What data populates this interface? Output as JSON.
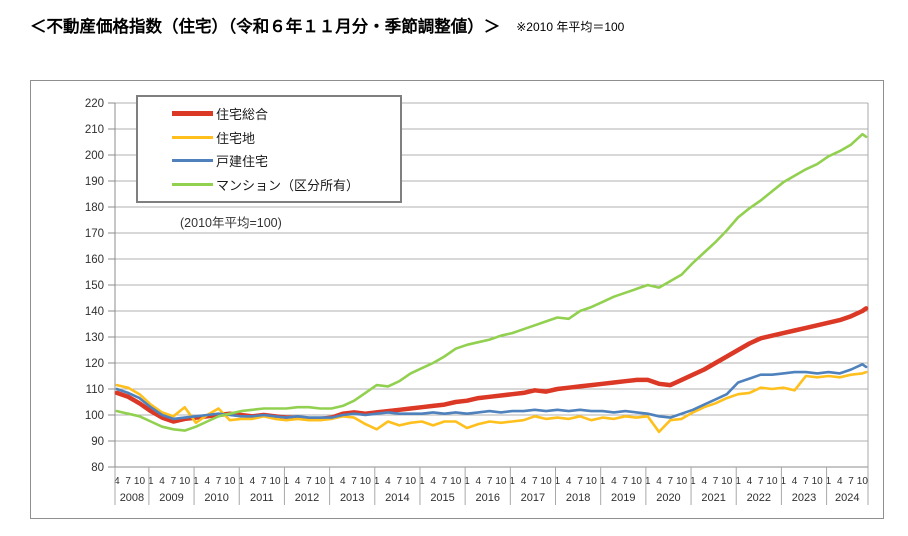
{
  "page": {
    "title": "＜不動産価格指数（住宅）（令和６年１１月分・季節調整値）＞",
    "note": "※2010 年平均＝100"
  },
  "chart_data": {
    "type": "line",
    "title": "不動産価格指数（住宅）",
    "annotation": "(2010年平均=100)",
    "grid": true,
    "legend_position": "top-left",
    "y_axis": {
      "min": 80,
      "max": 220,
      "step": 10,
      "ticks": [
        80,
        90,
        100,
        110,
        120,
        130,
        140,
        150,
        160,
        170,
        180,
        190,
        200,
        210,
        220
      ]
    },
    "x_axis": {
      "start": "2008-04",
      "end": "2024-11",
      "unit": "month",
      "tick_months": [
        1,
        4,
        7,
        10
      ],
      "years": [
        2008,
        2009,
        2010,
        2011,
        2012,
        2013,
        2014,
        2015,
        2016,
        2017,
        2018,
        2019,
        2020,
        2021,
        2022,
        2023,
        2024
      ]
    },
    "sampling": "values read at quarterly ticks (Jan/Apr/Jul/Oct) from 2008-04 through 2024-10, plus final point 2024-11",
    "series": [
      {
        "name": "住宅総合",
        "color": "#DB3826",
        "line_width": 4.5,
        "values": [
          108.5,
          107,
          104.5,
          101.5,
          99,
          97.5,
          98.5,
          99,
          99.5,
          100,
          100.5,
          100,
          99.5,
          100,
          99.5,
          99,
          99,
          98.5,
          98.5,
          99,
          100.5,
          101,
          100.5,
          101,
          101.5,
          102,
          102.5,
          103,
          103.5,
          104,
          105,
          105.5,
          106.5,
          107,
          107.5,
          108,
          108.5,
          109.5,
          109,
          110,
          110.5,
          111,
          111.5,
          112,
          112.5,
          113,
          113.5,
          113.5,
          112,
          111.5,
          113.5,
          115.5,
          117.5,
          120,
          122.5,
          125,
          127.5,
          129.5,
          130.5,
          131.5,
          132.5,
          133.5,
          134.5,
          135.5,
          136.5,
          138,
          140,
          141
        ]
      },
      {
        "name": "住宅地",
        "color": "#FFC01E",
        "line_width": 2.6,
        "values": [
          111.5,
          110.5,
          108,
          104,
          101,
          99.5,
          103,
          97,
          100,
          102.5,
          98,
          98.5,
          98.5,
          99.5,
          98.5,
          98,
          98.5,
          98,
          98,
          98.5,
          99.5,
          99,
          96.5,
          94.5,
          97.5,
          96,
          97,
          97.5,
          96,
          97.5,
          97.5,
          95,
          96.5,
          97.5,
          97,
          97.5,
          98,
          99.5,
          98.5,
          99,
          98.5,
          99.5,
          98,
          99,
          98.5,
          99.5,
          99,
          99.5,
          93.5,
          98,
          98.5,
          101,
          103,
          104.5,
          106.5,
          108,
          108.5,
          110.5,
          110,
          110.5,
          109.5,
          115,
          114.5,
          115,
          114.5,
          115.5,
          116,
          116.5
        ]
      },
      {
        "name": "戸建住宅",
        "color": "#4F81BD",
        "line_width": 2.6,
        "values": [
          110,
          108.5,
          106.5,
          103,
          100,
          98.5,
          99,
          99.5,
          100,
          100.5,
          100,
          99.5,
          99.5,
          100,
          99.5,
          99,
          99.5,
          99,
          99,
          99,
          100,
          100.5,
          100,
          100.5,
          101,
          100.5,
          100.5,
          100.5,
          101,
          100.5,
          101,
          100.5,
          101,
          101.5,
          101,
          101.5,
          101.5,
          102,
          101.5,
          102,
          101.5,
          102,
          101.5,
          101.5,
          101,
          101.5,
          101,
          100.5,
          99.5,
          99,
          100.5,
          102,
          104,
          106,
          108,
          112.5,
          114,
          115.5,
          115.5,
          116,
          116.5,
          116.5,
          116,
          116.5,
          116,
          117.5,
          119.5,
          118.5
        ]
      },
      {
        "name": "マンション（区分所有）",
        "color": "#92D050",
        "line_width": 2.6,
        "values": [
          101.5,
          100.5,
          99.5,
          97.5,
          95.5,
          94.5,
          94,
          95.5,
          97.5,
          99.5,
          100.5,
          101.5,
          102,
          102.5,
          102.5,
          102.5,
          103,
          103,
          102.5,
          102.5,
          103.5,
          105.5,
          108.5,
          111.5,
          111,
          113,
          116,
          118,
          120,
          122.5,
          125.5,
          127,
          128,
          129,
          130.5,
          131.5,
          133,
          134.5,
          136,
          137.5,
          137,
          140,
          141.5,
          143.5,
          145.5,
          147,
          148.5,
          150,
          149,
          151.5,
          154,
          158.5,
          162.5,
          166.5,
          171,
          176,
          179.5,
          182.5,
          186,
          189.5,
          192,
          194.5,
          196.5,
          199.5,
          201.5,
          204,
          208,
          207
        ]
      }
    ]
  }
}
